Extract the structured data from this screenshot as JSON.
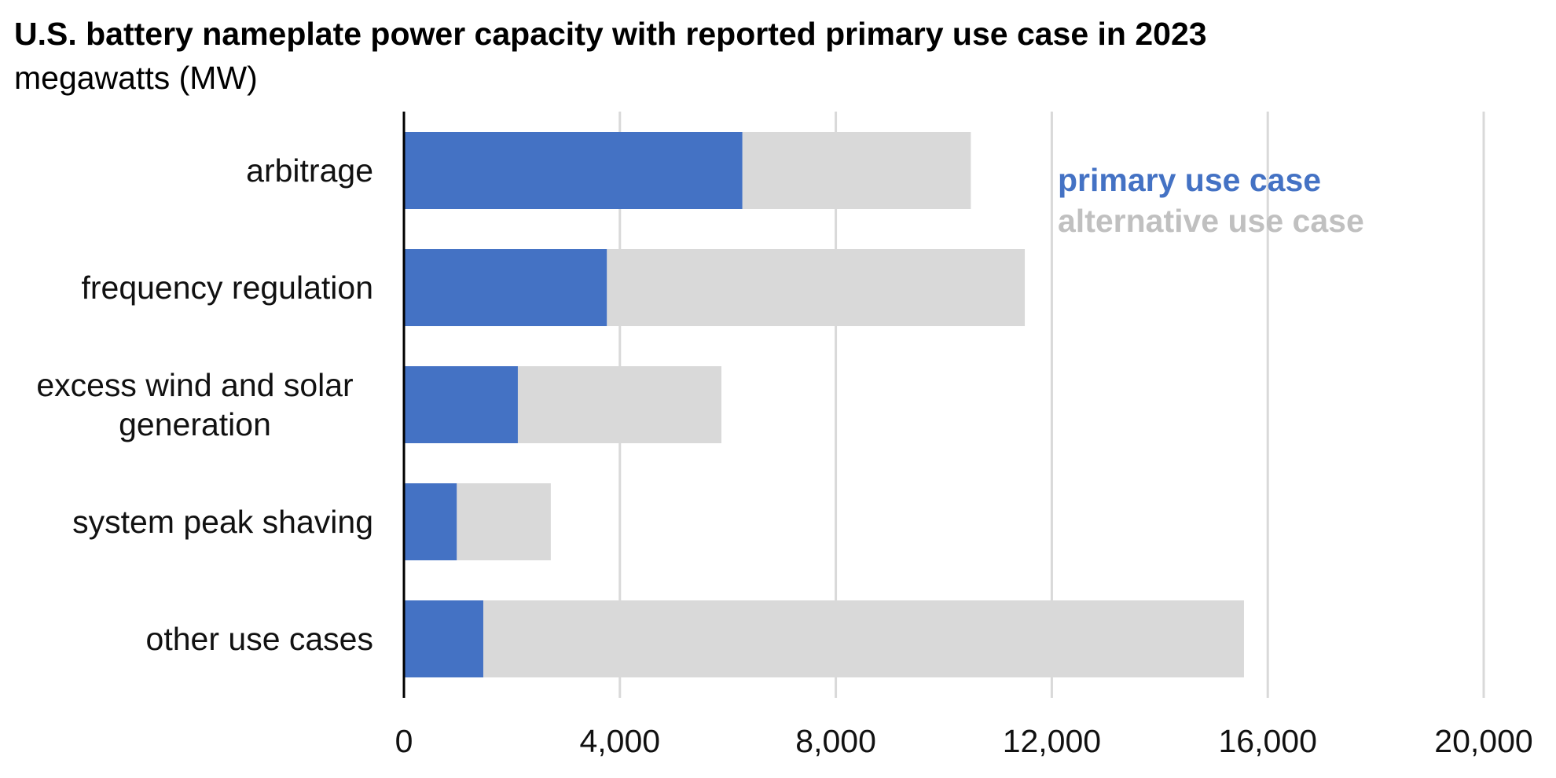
{
  "chart_data": {
    "type": "bar",
    "orientation": "horizontal",
    "stacked": true,
    "title": "U.S. battery nameplate power capacity with reported primary use case in 2023",
    "subtitle": "megawatts (MW)",
    "categories": [
      [
        "arbitrage"
      ],
      [
        "frequency regulation"
      ],
      [
        "excess wind and solar",
        "generation"
      ],
      [
        "system peak shaving"
      ],
      [
        "other use cases"
      ]
    ],
    "series": [
      {
        "name": "primary use case",
        "color": "#4472C4",
        "values": [
          6270,
          3760,
          2110,
          980,
          1470
        ]
      },
      {
        "name": "alternative use case",
        "color": "#D9D9D9",
        "values": [
          4230,
          7740,
          3770,
          1740,
          14090
        ]
      }
    ],
    "xlim": [
      0,
      20000
    ],
    "xticks": [
      0,
      4000,
      8000,
      12000,
      16000,
      20000
    ],
    "xtick_labels": [
      "0",
      "4,000",
      "8,000",
      "12,000",
      "16,000",
      "20,000"
    ],
    "grid": true,
    "legend_position": "top-right"
  }
}
